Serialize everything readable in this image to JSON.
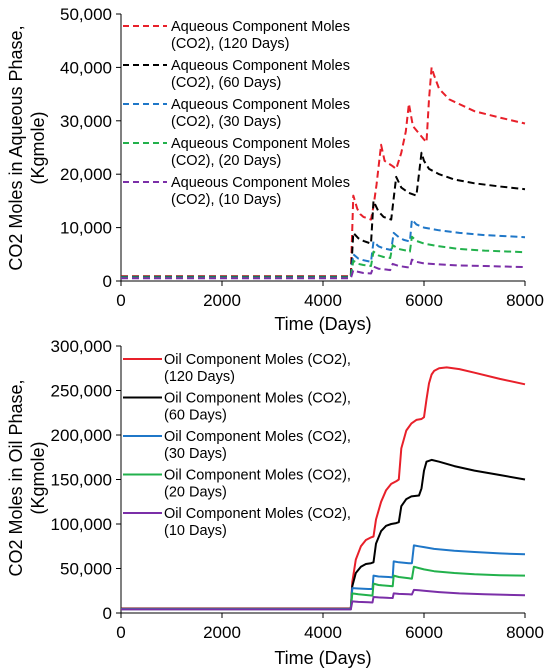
{
  "chart_data": [
    {
      "type": "line",
      "title": "",
      "ylabel_lines": [
        "CO2 Moles in Aqueous Phase,",
        "(Kgmole)"
      ],
      "xlabel": "Time (Days)",
      "xlim": [
        0,
        8000
      ],
      "ylim": [
        0,
        50000
      ],
      "xticks": [
        0,
        2000,
        4000,
        6000,
        8000
      ],
      "xtick_labels": [
        "0",
        "2000",
        "4000",
        "6000",
        "8000"
      ],
      "yticks": [
        0,
        10000,
        20000,
        30000,
        40000,
        50000
      ],
      "ytick_labels": [
        "0",
        "10,000",
        "20,000",
        "30,000",
        "40,000",
        "50,000"
      ],
      "grid": false,
      "line_style": "dashed",
      "legend_position": "top-left",
      "series": [
        {
          "name_lines": [
            "Aqueous Component Moles",
            "(CO2), (120 Days)"
          ],
          "color": "#e8202a",
          "x": [
            0,
            4550,
            4600,
            4680,
            4740,
            4800,
            4950,
            5000,
            5060,
            5150,
            5220,
            5380,
            5450,
            5550,
            5640,
            5700,
            5780,
            6000,
            6050,
            6100,
            6150,
            6200,
            6300,
            6500,
            7000,
            7500,
            8000
          ],
          "y": [
            900,
            900,
            16000,
            13500,
            12500,
            12000,
            11500,
            14000,
            18000,
            25500,
            22500,
            21500,
            21000,
            24000,
            28000,
            33200,
            29000,
            26500,
            26000,
            34000,
            40000,
            38500,
            36000,
            34000,
            31800,
            30600,
            29500
          ]
        },
        {
          "name_lines": [
            "Aqueous Component Moles",
            "(CO2), (60 Days)"
          ],
          "color": "#000000",
          "x": [
            0,
            4550,
            4600,
            4700,
            4800,
            4950,
            5000,
            5100,
            5200,
            5350,
            5450,
            5550,
            5700,
            5850,
            5950,
            6000,
            6100,
            6300,
            6600,
            7000,
            7500,
            8000
          ],
          "y": [
            800,
            800,
            9000,
            8000,
            7500,
            7000,
            15000,
            13000,
            12000,
            11500,
            19500,
            17500,
            16500,
            16000,
            24000,
            22500,
            21000,
            20000,
            19000,
            18300,
            17700,
            17200
          ]
        },
        {
          "name_lines": [
            "Aqueous Component Moles",
            "(CO2), (30 Days)"
          ],
          "color": "#1f77c8",
          "x": [
            0,
            4550,
            4600,
            4700,
            4800,
            4950,
            5000,
            5100,
            5200,
            5350,
            5400,
            5500,
            5600,
            5720,
            5760,
            5850,
            6000,
            6300,
            6700,
            7200,
            7600,
            8000
          ],
          "y": [
            700,
            700,
            5000,
            4200,
            3900,
            3600,
            7400,
            6500,
            6100,
            5800,
            9000,
            8200,
            7700,
            7400,
            11500,
            10600,
            10000,
            9500,
            9000,
            8600,
            8400,
            8200
          ]
        },
        {
          "name_lines": [
            "Aqueous Component Moles",
            "(CO2), (20 Days)"
          ],
          "color": "#22b14c",
          "x": [
            0,
            4550,
            4600,
            4700,
            4800,
            4950,
            5000,
            5100,
            5200,
            5330,
            5380,
            5500,
            5650,
            5720,
            5760,
            5850,
            6000,
            6300,
            6700,
            7200,
            8000
          ],
          "y": [
            650,
            650,
            3800,
            3200,
            3000,
            2800,
            5500,
            4800,
            4500,
            4300,
            6700,
            6000,
            5700,
            5500,
            8300,
            7500,
            7000,
            6500,
            6000,
            5700,
            5400
          ]
        },
        {
          "name_lines": [
            "Aqueous Component Moles",
            "(CO2), (10 Days)"
          ],
          "color": "#7b2fa8",
          "x": [
            0,
            4550,
            4600,
            4700,
            4800,
            4950,
            5000,
            5100,
            5250,
            5330,
            5380,
            5500,
            5650,
            5720,
            5760,
            5850,
            6000,
            6300,
            6700,
            7200,
            8000
          ],
          "y": [
            500,
            500,
            2000,
            1700,
            1500,
            1400,
            2700,
            2300,
            2150,
            2050,
            3200,
            2800,
            2600,
            2500,
            4000,
            3600,
            3300,
            3100,
            2900,
            2800,
            2600
          ]
        }
      ]
    },
    {
      "type": "line",
      "title": "",
      "ylabel_lines": [
        "CO2 Moles in Oil Phase,",
        "(Kgmole)"
      ],
      "xlabel": "Time (Days)",
      "xlim": [
        0,
        8000
      ],
      "ylim": [
        0,
        300000
      ],
      "xticks": [
        0,
        2000,
        4000,
        6000,
        8000
      ],
      "xtick_labels": [
        "0",
        "2000",
        "4000",
        "6000",
        "8000"
      ],
      "yticks": [
        0,
        50000,
        100000,
        150000,
        200000,
        250000,
        300000
      ],
      "ytick_labels": [
        "0",
        "50,000",
        "100,000",
        "150,000",
        "200,000",
        "250,000",
        "300,000"
      ],
      "grid": false,
      "line_style": "solid",
      "legend_position": "top-left",
      "series": [
        {
          "name_lines": [
            "Oil Component Moles (CO2),",
            "(120 Days)"
          ],
          "color": "#e8202a",
          "x": [
            0,
            4550,
            4580,
            4650,
            4750,
            4850,
            4950,
            5000,
            5050,
            5150,
            5250,
            5350,
            5450,
            5500,
            5550,
            5650,
            5750,
            5850,
            5950,
            6000,
            6050,
            6100,
            6150,
            6200,
            6300,
            6450,
            6700,
            7000,
            7500,
            8000
          ],
          "y": [
            5000,
            5000,
            35000,
            60000,
            75000,
            82000,
            85000,
            86000,
            105000,
            125000,
            138000,
            145000,
            148000,
            150000,
            185000,
            205000,
            213000,
            217000,
            218000,
            220000,
            240000,
            258000,
            268000,
            272000,
            275000,
            276000,
            274000,
            270000,
            263000,
            257000
          ]
        },
        {
          "name_lines": [
            "Oil Component Moles (CO2),",
            "(60 Days)"
          ],
          "color": "#000000",
          "x": [
            0,
            4550,
            4580,
            4650,
            4750,
            4850,
            4950,
            5000,
            5050,
            5150,
            5250,
            5350,
            5450,
            5500,
            5550,
            5650,
            5750,
            5900,
            5950,
            6000,
            6050,
            6150,
            6300,
            6600,
            7000,
            7500,
            8000
          ],
          "y": [
            4800,
            4800,
            30000,
            45000,
            52000,
            55000,
            56000,
            57000,
            78000,
            92000,
            98000,
            100000,
            101000,
            102000,
            120000,
            128000,
            131000,
            132000,
            140000,
            160000,
            170000,
            172000,
            170000,
            165000,
            160000,
            155000,
            150000
          ]
        },
        {
          "name_lines": [
            "Oil Component Moles (CO2),",
            "(30 Days)"
          ],
          "color": "#1f77c8",
          "x": [
            0,
            4550,
            4580,
            4700,
            4900,
            4980,
            5000,
            5100,
            5300,
            5380,
            5400,
            5500,
            5700,
            5760,
            5800,
            5900,
            6000,
            6200,
            6600,
            7000,
            7500,
            8000
          ],
          "y": [
            4500,
            4500,
            28000,
            27500,
            27000,
            27000,
            42000,
            41000,
            40500,
            40000,
            58000,
            57000,
            56000,
            56000,
            76000,
            75000,
            74000,
            72000,
            70000,
            68500,
            67000,
            66000
          ]
        },
        {
          "name_lines": [
            "Oil Component Moles (CO2),",
            "(20 Days)"
          ],
          "color": "#22b14c",
          "x": [
            0,
            4550,
            4580,
            4700,
            4900,
            4980,
            5000,
            5100,
            5300,
            5380,
            5400,
            5500,
            5700,
            5760,
            5800,
            5900,
            6000,
            6200,
            6600,
            7000,
            7500,
            8000
          ],
          "y": [
            4300,
            4300,
            22000,
            21000,
            20000,
            19500,
            33000,
            31500,
            30500,
            30000,
            42000,
            40500,
            39000,
            38500,
            52000,
            50500,
            49000,
            47000,
            45000,
            43500,
            42500,
            42000
          ]
        },
        {
          "name_lines": [
            "Oil Component Moles (CO2),",
            "(10 Days)"
          ],
          "color": "#7b2fa8",
          "x": [
            0,
            4550,
            4580,
            4700,
            4900,
            4980,
            5000,
            5100,
            5300,
            5380,
            5400,
            5500,
            5700,
            5760,
            5800,
            5900,
            6000,
            6300,
            6700,
            7200,
            8000
          ],
          "y": [
            4000,
            4000,
            13000,
            12500,
            12000,
            11800,
            18000,
            17500,
            17000,
            16800,
            22000,
            21500,
            21000,
            20800,
            26000,
            25500,
            25000,
            23500,
            22000,
            21000,
            20000
          ]
        }
      ]
    }
  ]
}
